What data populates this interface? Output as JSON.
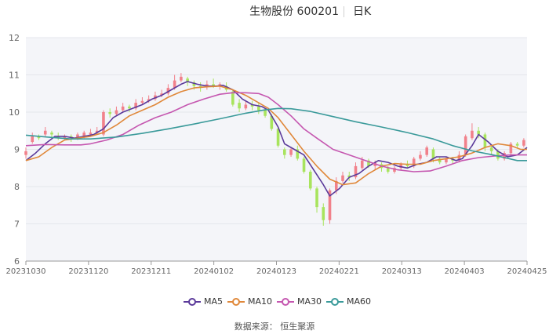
{
  "header": {
    "stock_name_code": "生物股份 600201",
    "period": "日K"
  },
  "source": "数据来源： 恒生聚源",
  "colors": {
    "up": "#f1818b",
    "down": "#a8e45d",
    "plot_bg": "#f4f5f9",
    "axis": "#999999"
  },
  "chart_data": {
    "type": "candlestick",
    "title": "生物股份 600201 日K",
    "ylim": [
      6,
      12
    ],
    "yticks": [
      6,
      7,
      8,
      9,
      10,
      11,
      12
    ],
    "xticks": [
      "20231030",
      "20231120",
      "20231211",
      "20240102",
      "20240123",
      "20240221",
      "20240313",
      "20240403",
      "20240425"
    ],
    "grid": true,
    "legend_position": "bottom",
    "series": [
      {
        "name": "MA5",
        "color": "#5b3a9a",
        "points": [
          [
            0,
            8.7
          ],
          [
            3,
            8.9
          ],
          [
            6,
            9.15
          ],
          [
            9,
            9.35
          ],
          [
            12,
            9.35
          ],
          [
            15,
            9.3
          ],
          [
            18,
            9.35
          ],
          [
            21,
            9.4
          ],
          [
            24,
            9.55
          ],
          [
            27,
            9.85
          ],
          [
            30,
            10.0
          ],
          [
            33,
            10.1
          ],
          [
            36,
            10.2
          ],
          [
            39,
            10.35
          ],
          [
            42,
            10.45
          ],
          [
            45,
            10.6
          ],
          [
            48,
            10.75
          ],
          [
            50,
            10.82
          ],
          [
            53,
            10.75
          ],
          [
            56,
            10.7
          ],
          [
            59,
            10.7
          ],
          [
            61,
            10.72
          ],
          [
            64,
            10.6
          ],
          [
            67,
            10.35
          ],
          [
            70,
            10.2
          ],
          [
            73,
            10.15
          ],
          [
            75,
            10.05
          ],
          [
            78,
            9.6
          ],
          [
            80,
            9.15
          ],
          [
            83,
            9.0
          ],
          [
            86,
            8.85
          ],
          [
            89,
            8.45
          ],
          [
            92,
            8.05
          ],
          [
            94,
            7.75
          ],
          [
            97,
            7.95
          ],
          [
            100,
            8.25
          ],
          [
            103,
            8.35
          ],
          [
            106,
            8.55
          ],
          [
            109,
            8.7
          ],
          [
            112,
            8.65
          ],
          [
            115,
            8.55
          ],
          [
            118,
            8.5
          ],
          [
            121,
            8.6
          ],
          [
            124,
            8.65
          ],
          [
            127,
            8.8
          ],
          [
            130,
            8.8
          ],
          [
            133,
            8.7
          ],
          [
            135,
            8.75
          ],
          [
            138,
            9.1
          ],
          [
            140,
            9.4
          ],
          [
            143,
            9.2
          ],
          [
            146,
            8.95
          ],
          [
            149,
            8.8
          ],
          [
            152,
            8.85
          ],
          [
            155,
            9.05
          ]
        ]
      },
      {
        "name": "MA10",
        "color": "#e0883a",
        "points": [
          [
            0,
            8.7
          ],
          [
            4,
            8.8
          ],
          [
            8,
            9.05
          ],
          [
            12,
            9.25
          ],
          [
            16,
            9.3
          ],
          [
            20,
            9.35
          ],
          [
            24,
            9.45
          ],
          [
            28,
            9.65
          ],
          [
            32,
            9.9
          ],
          [
            36,
            10.05
          ],
          [
            40,
            10.2
          ],
          [
            44,
            10.4
          ],
          [
            48,
            10.55
          ],
          [
            52,
            10.65
          ],
          [
            56,
            10.68
          ],
          [
            60,
            10.7
          ],
          [
            64,
            10.6
          ],
          [
            68,
            10.45
          ],
          [
            72,
            10.25
          ],
          [
            75,
            10.1
          ],
          [
            78,
            9.85
          ],
          [
            82,
            9.4
          ],
          [
            86,
            8.95
          ],
          [
            90,
            8.55
          ],
          [
            94,
            8.2
          ],
          [
            98,
            8.05
          ],
          [
            102,
            8.1
          ],
          [
            106,
            8.35
          ],
          [
            110,
            8.55
          ],
          [
            114,
            8.62
          ],
          [
            118,
            8.6
          ],
          [
            122,
            8.6
          ],
          [
            126,
            8.7
          ],
          [
            130,
            8.75
          ],
          [
            134,
            8.8
          ],
          [
            138,
            8.9
          ],
          [
            142,
            9.05
          ],
          [
            146,
            9.15
          ],
          [
            150,
            9.1
          ],
          [
            153,
            9.0
          ],
          [
            155,
            9.0
          ]
        ]
      },
      {
        "name": "MA30",
        "color": "#c557b0",
        "points": [
          [
            0,
            9.1
          ],
          [
            6,
            9.13
          ],
          [
            12,
            9.12
          ],
          [
            17,
            9.12
          ],
          [
            20,
            9.15
          ],
          [
            25,
            9.25
          ],
          [
            30,
            9.4
          ],
          [
            35,
            9.65
          ],
          [
            40,
            9.85
          ],
          [
            45,
            10.0
          ],
          [
            50,
            10.2
          ],
          [
            55,
            10.35
          ],
          [
            60,
            10.48
          ],
          [
            64,
            10.52
          ],
          [
            68,
            10.52
          ],
          [
            72,
            10.5
          ],
          [
            75,
            10.4
          ],
          [
            78,
            10.2
          ],
          [
            82,
            9.9
          ],
          [
            86,
            9.55
          ],
          [
            90,
            9.3
          ],
          [
            95,
            9.0
          ],
          [
            100,
            8.85
          ],
          [
            105,
            8.7
          ],
          [
            110,
            8.55
          ],
          [
            115,
            8.45
          ],
          [
            120,
            8.4
          ],
          [
            125,
            8.42
          ],
          [
            130,
            8.55
          ],
          [
            135,
            8.7
          ],
          [
            140,
            8.78
          ],
          [
            145,
            8.82
          ],
          [
            150,
            8.85
          ],
          [
            155,
            8.85
          ]
        ]
      },
      {
        "name": "MA60",
        "color": "#3a9a9a",
        "points": [
          [
            0,
            9.38
          ],
          [
            8,
            9.32
          ],
          [
            14,
            9.28
          ],
          [
            20,
            9.28
          ],
          [
            28,
            9.33
          ],
          [
            36,
            9.43
          ],
          [
            44,
            9.55
          ],
          [
            52,
            9.68
          ],
          [
            60,
            9.82
          ],
          [
            68,
            9.97
          ],
          [
            74,
            10.06
          ],
          [
            78,
            10.1
          ],
          [
            82,
            10.09
          ],
          [
            88,
            10.02
          ],
          [
            95,
            9.88
          ],
          [
            102,
            9.74
          ],
          [
            110,
            9.6
          ],
          [
            118,
            9.45
          ],
          [
            126,
            9.28
          ],
          [
            132,
            9.1
          ],
          [
            138,
            8.96
          ],
          [
            144,
            8.86
          ],
          [
            148,
            8.78
          ],
          [
            152,
            8.7
          ],
          [
            155,
            8.7
          ]
        ]
      }
    ],
    "candles": [
      {
        "i": 0,
        "o": 8.85,
        "c": 8.95,
        "h": 9.05,
        "l": 8.75
      },
      {
        "i": 2,
        "o": 9.2,
        "c": 9.35,
        "h": 9.45,
        "l": 9.15
      },
      {
        "i": 4,
        "o": 9.35,
        "c": 9.3,
        "h": 9.4,
        "l": 9.25
      },
      {
        "i": 6,
        "o": 9.4,
        "c": 9.5,
        "h": 9.6,
        "l": 9.35
      },
      {
        "i": 8,
        "o": 9.45,
        "c": 9.4,
        "h": 9.5,
        "l": 9.3
      },
      {
        "i": 10,
        "o": 9.35,
        "c": 9.3,
        "h": 9.45,
        "l": 9.25
      },
      {
        "i": 12,
        "o": 9.3,
        "c": 9.35,
        "h": 9.4,
        "l": 9.25
      },
      {
        "i": 14,
        "o": 9.35,
        "c": 9.3,
        "h": 9.4,
        "l": 9.2
      },
      {
        "i": 16,
        "o": 9.3,
        "c": 9.4,
        "h": 9.45,
        "l": 9.25
      },
      {
        "i": 18,
        "o": 9.35,
        "c": 9.45,
        "h": 9.5,
        "l": 9.3
      },
      {
        "i": 20,
        "o": 9.4,
        "c": 9.45,
        "h": 9.55,
        "l": 9.35
      },
      {
        "i": 22,
        "o": 9.45,
        "c": 9.5,
        "h": 9.6,
        "l": 9.4
      },
      {
        "i": 24,
        "o": 9.4,
        "c": 10.0,
        "h": 10.05,
        "l": 9.35
      },
      {
        "i": 26,
        "o": 10.0,
        "c": 9.95,
        "h": 10.1,
        "l": 9.85
      },
      {
        "i": 28,
        "o": 9.95,
        "c": 10.05,
        "h": 10.15,
        "l": 9.9
      },
      {
        "i": 30,
        "o": 10.05,
        "c": 10.15,
        "h": 10.25,
        "l": 10.0
      },
      {
        "i": 32,
        "o": 10.15,
        "c": 10.1,
        "h": 10.2,
        "l": 10.0
      },
      {
        "i": 34,
        "o": 10.1,
        "c": 10.25,
        "h": 10.35,
        "l": 10.05
      },
      {
        "i": 36,
        "o": 10.25,
        "c": 10.3,
        "h": 10.4,
        "l": 10.2
      },
      {
        "i": 38,
        "o": 10.3,
        "c": 10.35,
        "h": 10.45,
        "l": 10.25
      },
      {
        "i": 40,
        "o": 10.35,
        "c": 10.45,
        "h": 10.55,
        "l": 10.3
      },
      {
        "i": 42,
        "o": 10.45,
        "c": 10.5,
        "h": 10.6,
        "l": 10.4
      },
      {
        "i": 44,
        "o": 10.5,
        "c": 10.65,
        "h": 10.75,
        "l": 10.45
      },
      {
        "i": 46,
        "o": 10.65,
        "c": 10.85,
        "h": 11.0,
        "l": 10.6
      },
      {
        "i": 48,
        "o": 10.85,
        "c": 10.95,
        "h": 11.05,
        "l": 10.8
      },
      {
        "i": 50,
        "o": 10.9,
        "c": 10.8,
        "h": 10.95,
        "l": 10.7
      },
      {
        "i": 52,
        "o": 10.8,
        "c": 10.7,
        "h": 10.85,
        "l": 10.6
      },
      {
        "i": 54,
        "o": 10.7,
        "c": 10.65,
        "h": 10.8,
        "l": 10.55
      },
      {
        "i": 56,
        "o": 10.7,
        "c": 10.75,
        "h": 10.85,
        "l": 10.6
      },
      {
        "i": 58,
        "o": 10.75,
        "c": 10.7,
        "h": 10.9,
        "l": 10.65
      },
      {
        "i": 60,
        "o": 10.7,
        "c": 10.75,
        "h": 10.8,
        "l": 10.6
      },
      {
        "i": 62,
        "o": 10.7,
        "c": 10.6,
        "h": 10.8,
        "l": 10.55
      },
      {
        "i": 64,
        "o": 10.55,
        "c": 10.2,
        "h": 10.6,
        "l": 10.15
      },
      {
        "i": 66,
        "o": 10.25,
        "c": 10.1,
        "h": 10.35,
        "l": 10.0
      },
      {
        "i": 68,
        "o": 10.1,
        "c": 10.2,
        "h": 10.3,
        "l": 10.05
      },
      {
        "i": 70,
        "o": 10.2,
        "c": 10.15,
        "h": 10.3,
        "l": 10.05
      },
      {
        "i": 72,
        "o": 10.15,
        "c": 10.05,
        "h": 10.25,
        "l": 9.95
      },
      {
        "i": 74,
        "o": 10.05,
        "c": 9.9,
        "h": 10.1,
        "l": 9.85
      },
      {
        "i": 76,
        "o": 9.9,
        "c": 9.55,
        "h": 9.95,
        "l": 9.5
      },
      {
        "i": 78,
        "o": 9.55,
        "c": 9.1,
        "h": 9.6,
        "l": 9.05
      },
      {
        "i": 80,
        "o": 9.0,
        "c": 8.85,
        "h": 9.05,
        "l": 8.75
      },
      {
        "i": 82,
        "o": 8.85,
        "c": 9.0,
        "h": 9.05,
        "l": 8.8
      },
      {
        "i": 84,
        "o": 9.0,
        "c": 8.75,
        "h": 9.1,
        "l": 8.7
      },
      {
        "i": 86,
        "o": 8.75,
        "c": 8.4,
        "h": 8.8,
        "l": 8.35
      },
      {
        "i": 88,
        "o": 8.4,
        "c": 7.95,
        "h": 8.45,
        "l": 7.9
      },
      {
        "i": 90,
        "o": 7.95,
        "c": 7.45,
        "h": 8.0,
        "l": 7.3
      },
      {
        "i": 92,
        "o": 7.45,
        "c": 7.1,
        "h": 7.55,
        "l": 6.95
      },
      {
        "i": 94,
        "o": 7.1,
        "c": 7.9,
        "h": 7.95,
        "l": 7.0
      },
      {
        "i": 96,
        "o": 7.9,
        "c": 8.15,
        "h": 8.25,
        "l": 7.8
      },
      {
        "i": 98,
        "o": 8.15,
        "c": 8.3,
        "h": 8.4,
        "l": 8.1
      },
      {
        "i": 100,
        "o": 8.3,
        "c": 8.25,
        "h": 8.4,
        "l": 8.15
      },
      {
        "i": 102,
        "o": 8.25,
        "c": 8.55,
        "h": 8.65,
        "l": 8.2
      },
      {
        "i": 104,
        "o": 8.5,
        "c": 8.7,
        "h": 8.8,
        "l": 8.45
      },
      {
        "i": 106,
        "o": 8.7,
        "c": 8.55,
        "h": 8.75,
        "l": 8.5
      },
      {
        "i": 108,
        "o": 8.55,
        "c": 8.65,
        "h": 8.7,
        "l": 8.45
      },
      {
        "i": 110,
        "o": 8.6,
        "c": 8.5,
        "h": 8.65,
        "l": 8.4
      },
      {
        "i": 112,
        "o": 8.5,
        "c": 8.4,
        "h": 8.55,
        "l": 8.35
      },
      {
        "i": 114,
        "o": 8.4,
        "c": 8.5,
        "h": 8.55,
        "l": 8.35
      },
      {
        "i": 116,
        "o": 8.5,
        "c": 8.6,
        "h": 8.65,
        "l": 8.45
      },
      {
        "i": 118,
        "o": 8.6,
        "c": 8.55,
        "h": 8.7,
        "l": 8.5
      },
      {
        "i": 120,
        "o": 8.55,
        "c": 8.75,
        "h": 8.8,
        "l": 8.5
      },
      {
        "i": 122,
        "o": 8.75,
        "c": 8.85,
        "h": 8.95,
        "l": 8.7
      },
      {
        "i": 124,
        "o": 8.85,
        "c": 9.05,
        "h": 9.1,
        "l": 8.8
      },
      {
        "i": 126,
        "o": 9.0,
        "c": 8.75,
        "h": 9.05,
        "l": 8.65
      },
      {
        "i": 128,
        "o": 8.75,
        "c": 8.65,
        "h": 8.8,
        "l": 8.6
      },
      {
        "i": 130,
        "o": 8.65,
        "c": 8.75,
        "h": 8.8,
        "l": 8.6
      },
      {
        "i": 132,
        "o": 8.75,
        "c": 8.7,
        "h": 8.8,
        "l": 8.6
      },
      {
        "i": 134,
        "o": 8.7,
        "c": 8.85,
        "h": 8.95,
        "l": 8.65
      },
      {
        "i": 136,
        "o": 8.85,
        "c": 9.35,
        "h": 9.4,
        "l": 8.8
      },
      {
        "i": 138,
        "o": 9.3,
        "c": 9.5,
        "h": 9.7,
        "l": 9.25
      },
      {
        "i": 140,
        "o": 9.5,
        "c": 9.4,
        "h": 9.6,
        "l": 9.3
      },
      {
        "i": 142,
        "o": 9.4,
        "c": 9.05,
        "h": 9.45,
        "l": 8.95
      },
      {
        "i": 144,
        "o": 9.05,
        "c": 8.95,
        "h": 9.1,
        "l": 8.85
      },
      {
        "i": 146,
        "o": 8.95,
        "c": 8.75,
        "h": 9.0,
        "l": 8.7
      },
      {
        "i": 148,
        "o": 8.75,
        "c": 8.9,
        "h": 8.95,
        "l": 8.7
      },
      {
        "i": 150,
        "o": 8.9,
        "c": 9.15,
        "h": 9.2,
        "l": 8.85
      },
      {
        "i": 152,
        "o": 9.15,
        "c": 9.1,
        "h": 9.2,
        "l": 9.05
      },
      {
        "i": 154,
        "o": 9.1,
        "c": 9.25,
        "h": 9.3,
        "l": 9.05
      }
    ]
  }
}
